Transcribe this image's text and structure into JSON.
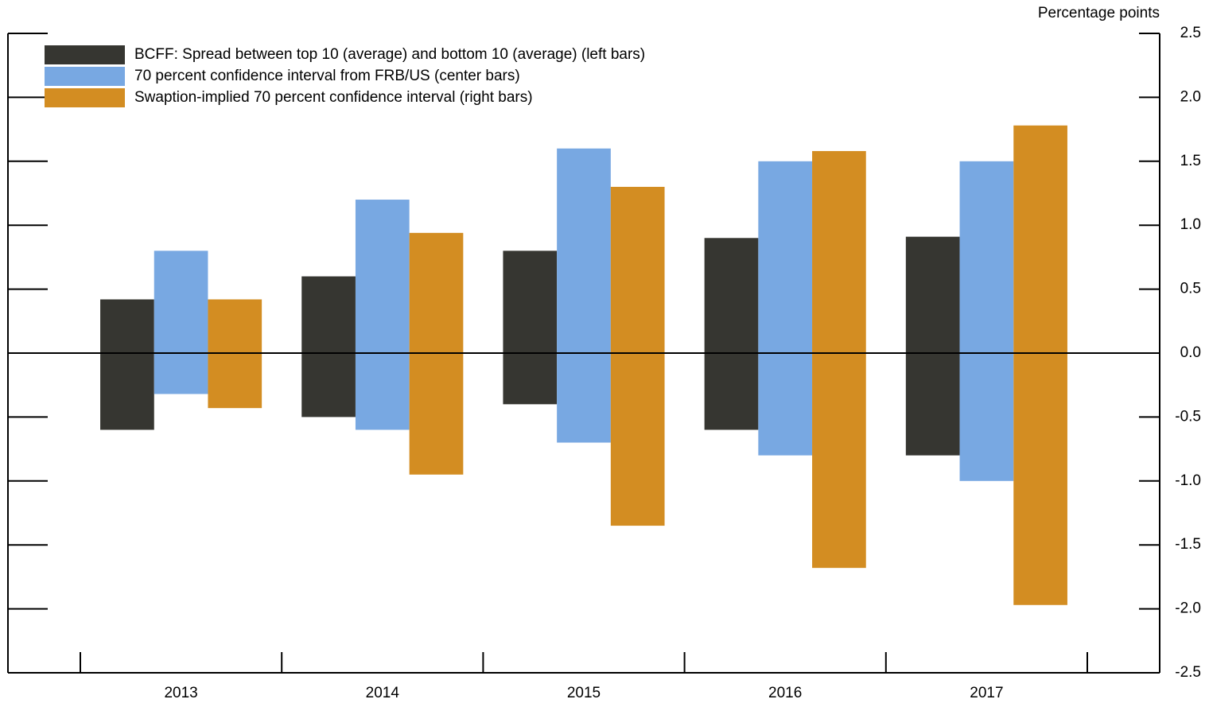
{
  "chart_data": {
    "type": "floating-bar",
    "unit_label": "Percentage points",
    "categories": [
      "2013",
      "2014",
      "2015",
      "2016",
      "2017"
    ],
    "series": [
      {
        "name": "BCFF: Spread between top 10 (average) and bottom 10 (average) (left bars)",
        "color": "#363631",
        "high": [
          0.42,
          0.6,
          0.8,
          0.9,
          0.91
        ],
        "low": [
          -0.6,
          -0.5,
          -0.4,
          -0.6,
          -0.8
        ]
      },
      {
        "name": "70 percent confidence interval from FRB/US (center bars)",
        "color": "#78a8e2",
        "high": [
          0.8,
          1.2,
          1.6,
          1.5,
          1.5
        ],
        "low": [
          -0.32,
          -0.6,
          -0.7,
          -0.8,
          -1.0
        ]
      },
      {
        "name": "Swaption-implied 70 percent confidence interval (right bars)",
        "color": "#d38d22",
        "high": [
          0.42,
          0.94,
          1.3,
          1.58,
          1.78
        ],
        "low": [
          -0.43,
          -0.95,
          -1.35,
          -1.68,
          -1.97
        ]
      }
    ],
    "ylim": [
      -2.5,
      2.5
    ],
    "yticks": [
      -2.5,
      {
        "value": -2,
        "label": "-2.0"
      },
      -1.5,
      {
        "value": -1,
        "label": "-1.0"
      },
      -0.5,
      {
        "value": 0,
        "label": "0.0"
      },
      0.5,
      {
        "value": 1,
        "label": "1.0"
      },
      1.5,
      {
        "value": 2,
        "label": "2.0"
      },
      2.5
    ]
  }
}
